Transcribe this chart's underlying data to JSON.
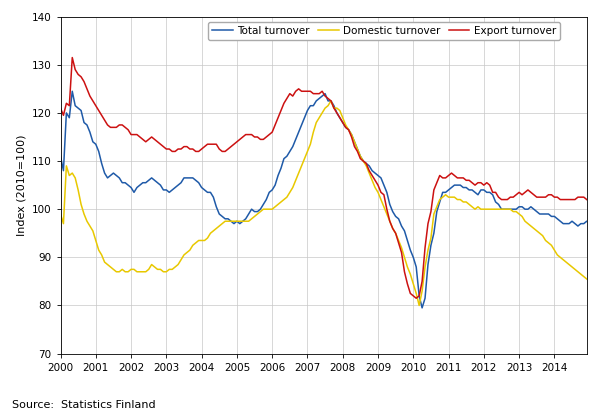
{
  "title": "",
  "ylabel": "Index (2010=100)",
  "source_text": "Source:  Statistics Finland",
  "ylim": [
    70,
    140
  ],
  "yticks": [
    70,
    80,
    90,
    100,
    110,
    120,
    130,
    140
  ],
  "xlim_start": 2000.0,
  "xlim_end": 2014.92,
  "legend_labels": [
    "Total turnover",
    "Domestic turnover",
    "Export turnover"
  ],
  "line_colors": [
    "#1f5aa8",
    "#e8c800",
    "#cc1111"
  ],
  "xtick_years": [
    2000,
    2001,
    2002,
    2003,
    2004,
    2005,
    2006,
    2007,
    2008,
    2009,
    2010,
    2011,
    2012,
    2013,
    2014
  ],
  "total_turnover": [
    111.0,
    108.0,
    120.0,
    119.0,
    124.5,
    121.5,
    121.0,
    120.5,
    118.0,
    117.5,
    116.0,
    114.0,
    113.5,
    112.0,
    109.5,
    107.5,
    106.5,
    107.0,
    107.5,
    107.0,
    106.5,
    105.5,
    105.5,
    105.0,
    104.5,
    103.5,
    104.5,
    105.0,
    105.5,
    105.5,
    106.0,
    106.5,
    106.0,
    105.5,
    105.0,
    104.0,
    104.0,
    103.5,
    104.0,
    104.5,
    105.0,
    105.5,
    106.5,
    106.5,
    106.5,
    106.5,
    106.0,
    105.5,
    104.5,
    104.0,
    103.5,
    103.5,
    102.5,
    100.5,
    99.0,
    98.5,
    98.0,
    98.0,
    97.5,
    97.0,
    97.5,
    97.0,
    97.5,
    98.0,
    99.0,
    100.0,
    99.5,
    99.5,
    100.0,
    101.0,
    102.0,
    103.5,
    104.0,
    105.0,
    107.0,
    108.5,
    110.5,
    111.0,
    112.0,
    113.0,
    114.5,
    116.0,
    117.5,
    119.0,
    120.5,
    121.5,
    121.5,
    122.5,
    123.0,
    123.5,
    124.0,
    122.5,
    122.5,
    121.5,
    120.0,
    119.0,
    118.0,
    117.0,
    116.5,
    115.5,
    114.0,
    112.5,
    111.0,
    110.0,
    109.5,
    109.0,
    108.0,
    107.5,
    107.0,
    106.5,
    105.0,
    103.5,
    101.0,
    99.5,
    98.5,
    98.0,
    96.5,
    95.5,
    93.5,
    91.5,
    90.0,
    88.0,
    82.0,
    79.5,
    81.5,
    88.5,
    92.5,
    95.0,
    99.5,
    101.5,
    103.5,
    103.5,
    104.0,
    104.5,
    105.0,
    105.0,
    105.0,
    104.5,
    104.5,
    104.0,
    104.0,
    103.5,
    103.0,
    104.0,
    104.0,
    103.5,
    103.5,
    103.0,
    101.5,
    101.0,
    100.0,
    100.0,
    100.0,
    100.0,
    100.0,
    100.0,
    100.5,
    100.5,
    100.0,
    100.0,
    100.5,
    100.0,
    99.5,
    99.0,
    99.0,
    99.0,
    99.0,
    98.5,
    98.5,
    98.0,
    97.5,
    97.0,
    97.0,
    97.0,
    97.5,
    97.0,
    96.5,
    97.0,
    97.0,
    97.5,
    97.0,
    96.5,
    95.5,
    96.0,
    96.5,
    96.0,
    95.5,
    95.0,
    94.5,
    94.5,
    94.0,
    94.5,
    95.5,
    96.0,
    95.5,
    95.0,
    94.5,
    95.0,
    95.5
  ],
  "domestic_turnover": [
    99.0,
    97.0,
    109.0,
    107.0,
    107.5,
    106.5,
    104.0,
    101.0,
    99.0,
    97.5,
    96.5,
    95.5,
    93.5,
    91.5,
    90.5,
    89.0,
    88.5,
    88.0,
    87.5,
    87.0,
    87.0,
    87.5,
    87.0,
    87.0,
    87.5,
    87.5,
    87.0,
    87.0,
    87.0,
    87.0,
    87.5,
    88.5,
    88.0,
    87.5,
    87.5,
    87.0,
    87.0,
    87.5,
    87.5,
    88.0,
    88.5,
    89.5,
    90.5,
    91.0,
    91.5,
    92.5,
    93.0,
    93.5,
    93.5,
    93.5,
    94.0,
    95.0,
    95.5,
    96.0,
    96.5,
    97.0,
    97.5,
    97.5,
    97.5,
    97.5,
    97.5,
    97.5,
    97.5,
    97.5,
    97.5,
    98.0,
    98.5,
    99.0,
    99.5,
    100.0,
    100.0,
    100.0,
    100.0,
    100.5,
    101.0,
    101.5,
    102.0,
    102.5,
    103.5,
    104.5,
    106.0,
    107.5,
    109.0,
    110.5,
    112.0,
    113.5,
    116.0,
    118.0,
    119.0,
    120.0,
    121.0,
    121.5,
    122.5,
    121.0,
    121.0,
    120.5,
    119.0,
    117.5,
    116.5,
    115.5,
    114.0,
    112.5,
    111.0,
    110.0,
    109.0,
    107.5,
    106.0,
    104.5,
    103.5,
    102.0,
    100.5,
    99.0,
    97.5,
    96.0,
    95.0,
    93.5,
    92.0,
    90.0,
    88.0,
    86.5,
    84.5,
    82.5,
    80.0,
    83.0,
    88.0,
    91.5,
    94.0,
    99.0,
    100.5,
    102.0,
    102.5,
    103.0,
    102.5,
    102.5,
    102.5,
    102.0,
    102.0,
    101.5,
    101.5,
    101.0,
    100.5,
    100.0,
    100.5,
    100.0,
    100.0,
    100.0,
    100.0,
    100.0,
    100.0,
    100.0,
    100.0,
    100.0,
    100.0,
    100.0,
    99.5,
    99.5,
    99.0,
    98.5,
    97.5,
    97.0,
    96.5,
    96.0,
    95.5,
    95.0,
    94.5,
    93.5,
    93.0,
    92.5,
    91.5,
    90.5,
    90.0,
    89.5,
    89.0,
    88.5,
    88.0,
    87.5,
    87.0,
    86.5,
    86.0,
    85.5,
    85.0,
    85.0,
    84.5,
    84.0,
    84.0,
    83.5,
    83.0,
    83.0,
    83.0,
    83.0,
    83.5,
    83.5,
    83.5,
    83.5,
    83.5,
    83.5,
    83.5
  ],
  "export_turnover": [
    121.0,
    119.5,
    122.0,
    121.5,
    131.5,
    129.0,
    128.0,
    127.5,
    126.5,
    125.0,
    123.5,
    122.5,
    121.5,
    120.5,
    119.5,
    118.5,
    117.5,
    117.0,
    117.0,
    117.0,
    117.5,
    117.5,
    117.0,
    116.5,
    115.5,
    115.5,
    115.5,
    115.0,
    114.5,
    114.0,
    114.5,
    115.0,
    114.5,
    114.0,
    113.5,
    113.0,
    112.5,
    112.5,
    112.0,
    112.0,
    112.5,
    112.5,
    113.0,
    113.0,
    112.5,
    112.5,
    112.0,
    112.0,
    112.5,
    113.0,
    113.5,
    113.5,
    113.5,
    113.5,
    112.5,
    112.0,
    112.0,
    112.5,
    113.0,
    113.5,
    114.0,
    114.5,
    115.0,
    115.5,
    115.5,
    115.5,
    115.0,
    115.0,
    114.5,
    114.5,
    115.0,
    115.5,
    116.0,
    117.5,
    119.0,
    120.5,
    122.0,
    123.0,
    124.0,
    123.5,
    124.5,
    125.0,
    124.5,
    124.5,
    124.5,
    124.5,
    124.0,
    124.0,
    124.0,
    124.5,
    123.5,
    123.0,
    122.5,
    121.0,
    120.0,
    119.0,
    118.0,
    117.0,
    116.5,
    115.0,
    113.0,
    112.0,
    110.5,
    110.0,
    109.5,
    108.0,
    107.0,
    106.0,
    105.0,
    103.5,
    103.0,
    100.0,
    97.5,
    96.0,
    95.0,
    93.0,
    91.0,
    87.0,
    84.5,
    82.5,
    82.0,
    81.5,
    82.0,
    85.0,
    92.0,
    97.0,
    99.5,
    104.0,
    105.5,
    107.0,
    106.5,
    106.5,
    107.0,
    107.5,
    107.0,
    106.5,
    106.5,
    106.5,
    106.0,
    106.0,
    105.5,
    105.0,
    105.5,
    105.5,
    105.0,
    105.5,
    105.0,
    103.5,
    103.5,
    102.5,
    102.0,
    102.0,
    102.0,
    102.5,
    102.5,
    103.0,
    103.5,
    103.0,
    103.5,
    104.0,
    103.5,
    103.0,
    102.5,
    102.5,
    102.5,
    102.5,
    103.0,
    103.0,
    102.5,
    102.5,
    102.0,
    102.0,
    102.0,
    102.0,
    102.0,
    102.0,
    102.5,
    102.5,
    102.5,
    102.0,
    101.5,
    102.0,
    102.5,
    102.5,
    102.0,
    102.0,
    102.0,
    102.0,
    102.5,
    102.5,
    103.0,
    103.0,
    103.0,
    103.0,
    103.0,
    103.0,
    103.0
  ]
}
